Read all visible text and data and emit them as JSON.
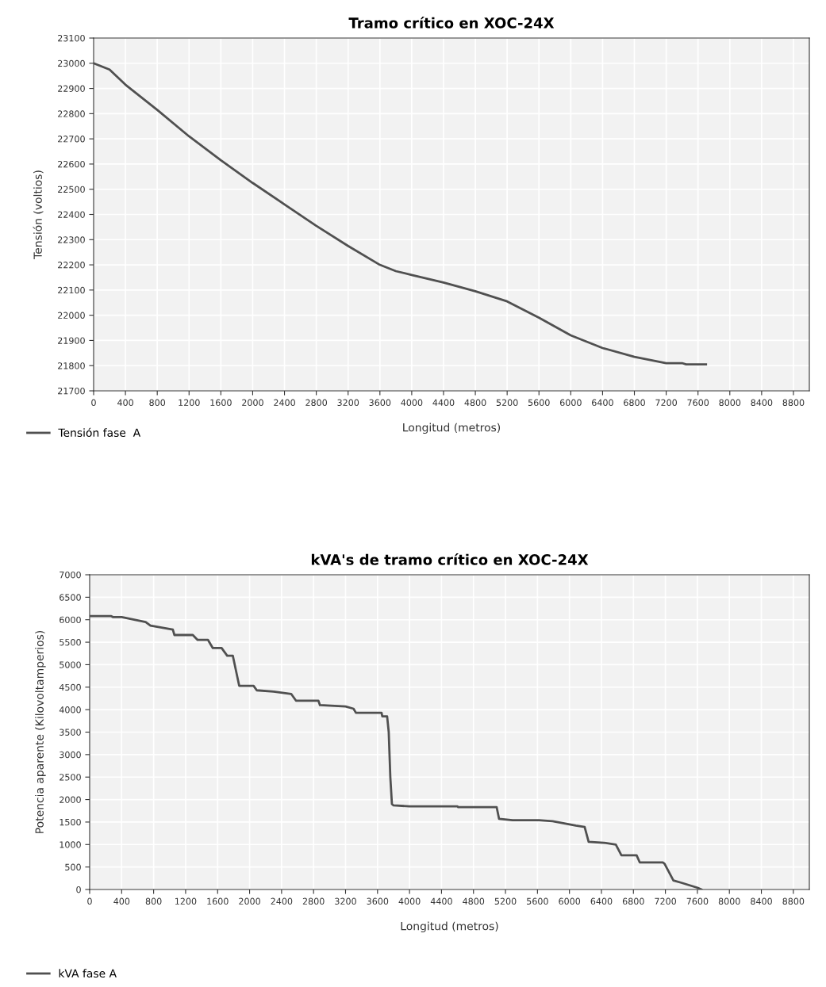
{
  "chart_data": [
    {
      "type": "line",
      "title": "Tramo crítico en XOC-24X",
      "xlabel": "Longitud (metros)",
      "ylabel": "Tensión (voltios)",
      "xlim": [
        0,
        9000
      ],
      "ylim": [
        21700,
        23100
      ],
      "xticks": [
        0,
        400,
        800,
        1200,
        1600,
        2000,
        2400,
        2800,
        3200,
        3600,
        4000,
        4400,
        4800,
        5200,
        5600,
        6000,
        6400,
        6800,
        7200,
        7600,
        8000,
        8400,
        8800
      ],
      "yticks": [
        21700,
        21800,
        21900,
        22000,
        22100,
        22200,
        22300,
        22400,
        22500,
        22600,
        22700,
        22800,
        22900,
        23000,
        23100
      ],
      "grid": true,
      "legend": "bottom",
      "marker": "none",
      "line_style": "solid",
      "series": [
        {
          "name": "Tensión fase  A",
          "color": "#505050",
          "x": [
            0,
            200,
            300,
            400,
            800,
            1200,
            1600,
            2000,
            2400,
            2800,
            3200,
            3600,
            3800,
            4000,
            4400,
            4800,
            5200,
            5600,
            6000,
            6400,
            6800,
            7200,
            7400,
            7450,
            7700
          ],
          "values": [
            23000,
            22975,
            22945,
            22915,
            22815,
            22710,
            22615,
            22525,
            22440,
            22355,
            22275,
            22200,
            22175,
            22160,
            22130,
            22095,
            22055,
            21990,
            21920,
            21870,
            21835,
            21810,
            21810,
            21805,
            21805
          ]
        }
      ]
    },
    {
      "type": "line",
      "title": "kVA's de tramo crítico en XOC-24X",
      "xlabel": "Longitud (metros)",
      "ylabel": "Potencia aparente (Kilovoltamperios)",
      "xlim": [
        0,
        9000
      ],
      "ylim": [
        0,
        7000
      ],
      "xticks": [
        0,
        400,
        800,
        1200,
        1600,
        2000,
        2400,
        2800,
        3200,
        3600,
        4000,
        4400,
        4800,
        5200,
        5600,
        6000,
        6400,
        6800,
        7200,
        7600,
        8000,
        8400,
        8800
      ],
      "yticks": [
        0,
        500,
        1000,
        1500,
        2000,
        2500,
        3000,
        3500,
        4000,
        4500,
        5000,
        5500,
        6000,
        6500,
        7000
      ],
      "grid": true,
      "legend": "bottom",
      "marker": "none",
      "line_style": "solid",
      "series": [
        {
          "name": "kVA fase A",
          "color": "#505050",
          "x": [
            0,
            270,
            290,
            400,
            700,
            760,
            1040,
            1060,
            1290,
            1350,
            1480,
            1540,
            1650,
            1720,
            1790,
            1870,
            2050,
            2090,
            2300,
            2520,
            2580,
            2860,
            2880,
            3200,
            3300,
            3330,
            3650,
            3660,
            3720,
            3740,
            3750,
            3760,
            3780,
            3800,
            4000,
            4600,
            4610,
            5090,
            5120,
            5290,
            5620,
            5790,
            6080,
            6190,
            6240,
            6430,
            6580,
            6650,
            6840,
            6880,
            7170,
            7190,
            7300,
            7400,
            7600,
            7650
          ],
          "values": [
            6080,
            6080,
            6060,
            6060,
            5950,
            5870,
            5780,
            5660,
            5660,
            5550,
            5550,
            5370,
            5370,
            5200,
            5200,
            4530,
            4530,
            4430,
            4400,
            4350,
            4200,
            4200,
            4100,
            4070,
            4020,
            3930,
            3930,
            3850,
            3850,
            3500,
            3000,
            2500,
            1900,
            1870,
            1850,
            1850,
            1830,
            1830,
            1570,
            1540,
            1540,
            1520,
            1420,
            1390,
            1060,
            1040,
            1000,
            760,
            760,
            600,
            600,
            570,
            200,
            150,
            40,
            0
          ]
        }
      ]
    }
  ]
}
